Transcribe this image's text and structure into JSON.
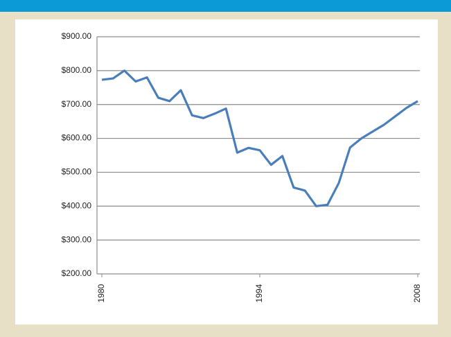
{
  "chart_data": {
    "type": "line",
    "x": [
      1980,
      1981,
      1982,
      1983,
      1984,
      1985,
      1986,
      1987,
      1988,
      1989,
      1990,
      1991,
      1992,
      1993,
      1994,
      1995,
      1996,
      1997,
      1998,
      1999,
      2000,
      2001,
      2002,
      2003,
      2004,
      2005,
      2006,
      2007,
      2008
    ],
    "series": [
      {
        "color": "#4a7ebb",
        "values": [
          773,
          777,
          800,
          768,
          780,
          720,
          710,
          742,
          668,
          660,
          673,
          688,
          558,
          572,
          565,
          522,
          548,
          455,
          446,
          400,
          404,
          468,
          573,
          600,
          620,
          640,
          665,
          690,
          710
        ]
      }
    ],
    "xlim": [
      1980,
      2008
    ],
    "xticks": [
      1980,
      1994,
      2008
    ],
    "ylim": [
      200,
      900
    ],
    "yticks": [
      {
        "value": 200,
        "label": "$200.00"
      },
      {
        "value": 300,
        "label": "$300.00"
      },
      {
        "value": 400,
        "label": "$400.00"
      },
      {
        "value": 500,
        "label": "$500.00"
      },
      {
        "value": 600,
        "label": "$600.00"
      },
      {
        "value": 700,
        "label": "$700.00"
      },
      {
        "value": 800,
        "label": "$800.00"
      },
      {
        "value": 900,
        "label": "$900.00"
      }
    ],
    "grid": true
  }
}
